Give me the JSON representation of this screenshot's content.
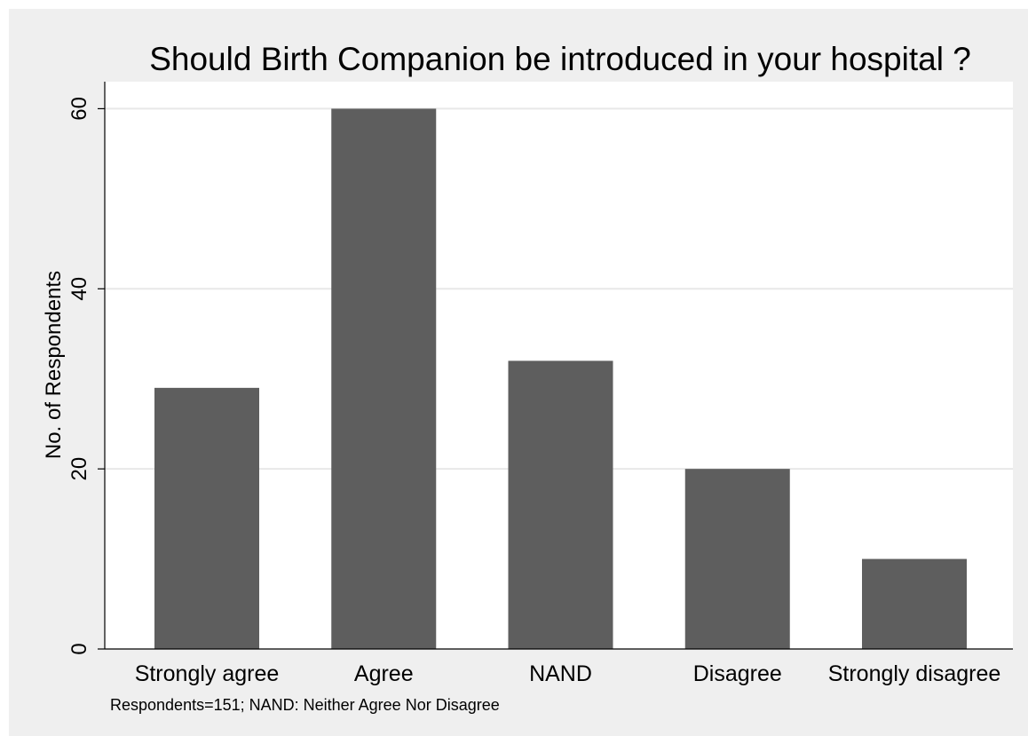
{
  "chart_data": {
    "type": "bar",
    "title": "Should Birth Companion be introduced in your hospital ?",
    "xlabel": "",
    "ylabel": "No. of Respondents",
    "categories": [
      "Strongly agree",
      "Agree",
      "NAND",
      "Disagree",
      "Strongly disagree"
    ],
    "values": [
      29,
      60,
      32,
      20,
      10
    ],
    "ylim": [
      0,
      63
    ],
    "yticks": [
      0,
      20,
      40,
      60
    ],
    "grid": true,
    "legend": "none",
    "note": "Respondents=151; NAND: Neither Agree Nor Disagree",
    "colors": {
      "bar": "#5e5e5e",
      "plot_background": "#ffffff",
      "outer_background": "#efefef",
      "grid": "#e8e8e8",
      "axis": "#000000"
    }
  }
}
